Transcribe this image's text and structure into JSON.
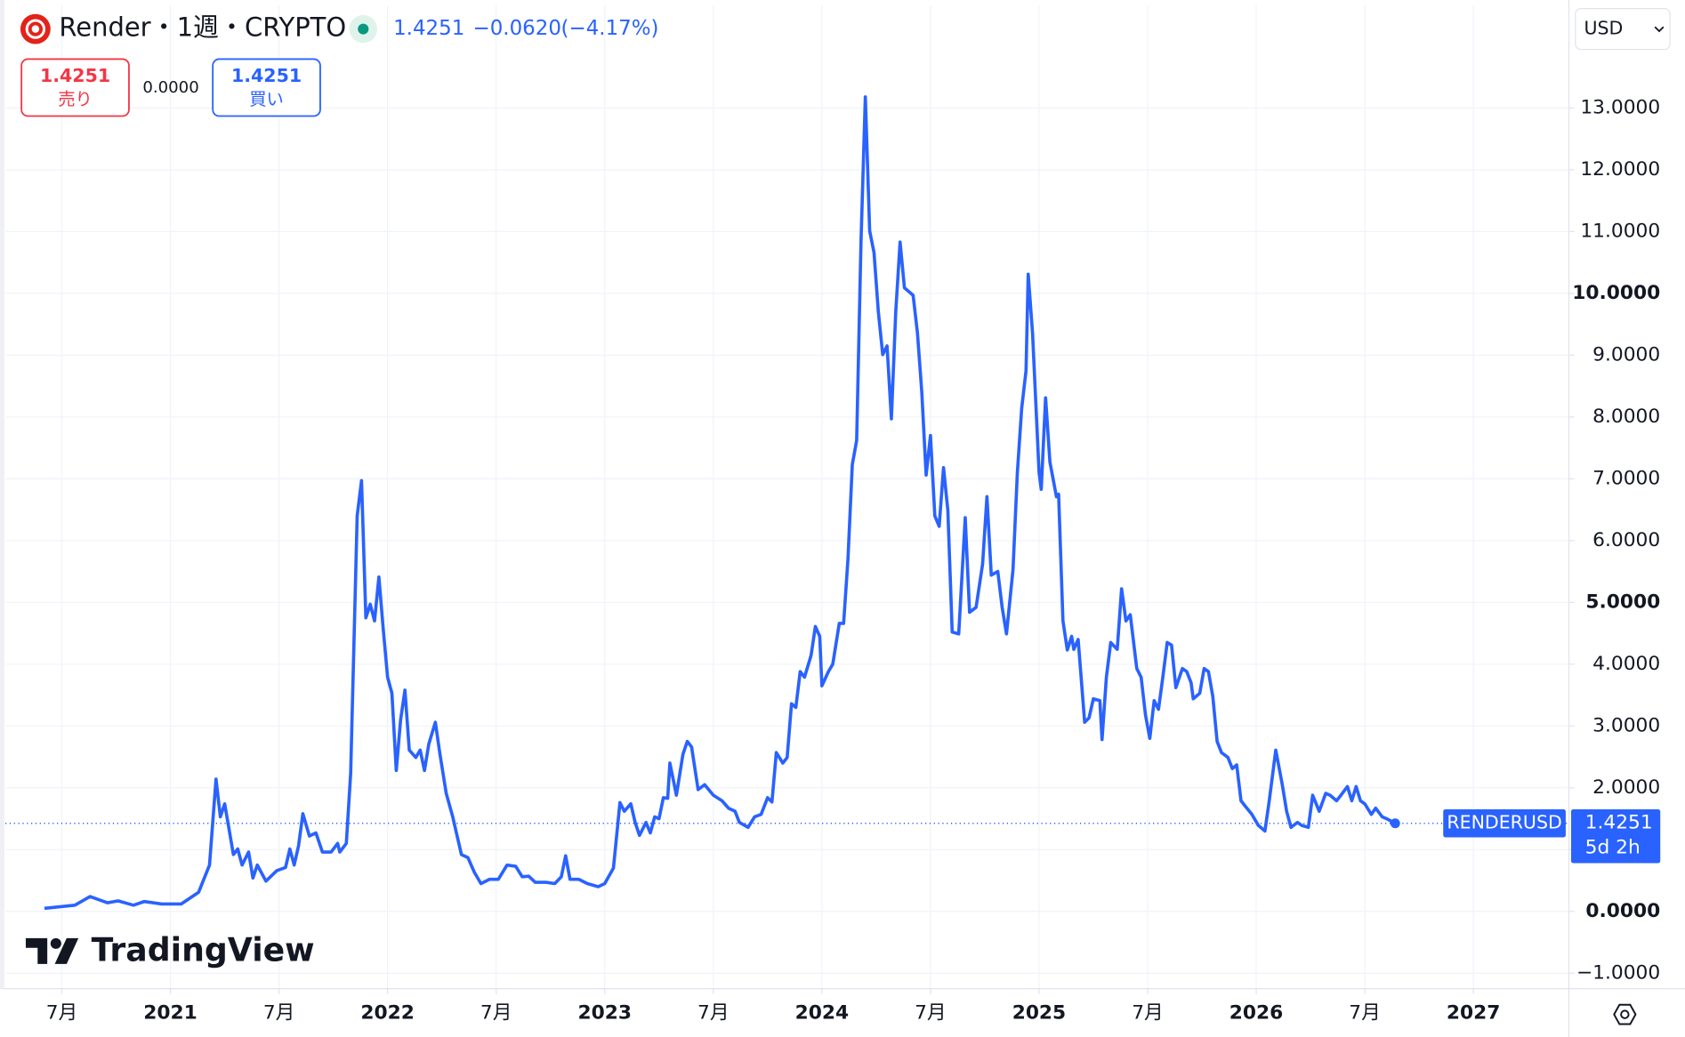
{
  "chart_data": {
    "type": "line",
    "title": "Render・1週・CRYPTO",
    "header": {
      "price": "1.4251",
      "change": "−0.0620",
      "change_pct": "(−4.17%)",
      "sell_price": "1.4251",
      "sell_label": "売り",
      "spread": "0.0000",
      "buy_price": "1.4251",
      "buy_label": "買い",
      "currency": "USD"
    },
    "logo": "TradingView",
    "countdown": "5d 2h",
    "last_price": {
      "value": 1.4251,
      "label": "1.4251"
    },
    "x": [
      2020.42,
      2020.56,
      2020.63,
      2020.71,
      2020.76,
      2020.83,
      2020.88,
      2020.96,
      2021.05,
      2021.13,
      2021.18,
      2021.21,
      2021.23,
      2021.25,
      2021.29,
      2021.31,
      2021.33,
      2021.36,
      2021.38,
      2021.4,
      2021.44,
      2021.49,
      2021.53,
      2021.55,
      2021.57,
      2021.59,
      2021.61,
      2021.64,
      2021.67,
      2021.7,
      2021.74,
      2021.77,
      2021.78,
      2021.81,
      2021.83,
      2021.86,
      2021.88,
      2021.9,
      2021.92,
      2021.94,
      2021.96,
      2021.98,
      2022.0,
      2022.02,
      2022.04,
      2022.06,
      2022.08,
      2022.1,
      2022.13,
      2022.15,
      2022.17,
      2022.19,
      2022.22,
      2022.24,
      2022.27,
      2022.3,
      2022.34,
      2022.37,
      2022.4,
      2022.43,
      2022.47,
      2022.51,
      2022.55,
      2022.59,
      2022.62,
      2022.65,
      2022.68,
      2022.73,
      2022.77,
      2022.8,
      2022.82,
      2022.84,
      2022.88,
      2022.92,
      2022.97,
      2023.0,
      2023.04,
      2023.07,
      2023.09,
      2023.12,
      2023.14,
      2023.16,
      2023.19,
      2023.21,
      2023.23,
      2023.25,
      2023.27,
      2023.29,
      2023.3,
      2023.33,
      2023.36,
      2023.38,
      2023.4,
      2023.43,
      2023.46,
      2023.5,
      2023.54,
      2023.57,
      2023.6,
      2023.62,
      2023.66,
      2023.69,
      2023.72,
      2023.75,
      2023.77,
      2023.79,
      2023.82,
      2023.84,
      2023.86,
      2023.88,
      2023.9,
      2023.92,
      2023.95,
      2023.97,
      2023.99,
      2024.0,
      2024.03,
      2024.05,
      2024.08,
      2024.1,
      2024.12,
      2024.14,
      2024.16,
      2024.18,
      2024.2,
      2024.22,
      2024.24,
      2024.26,
      2024.28,
      2024.3,
      2024.32,
      2024.34,
      2024.36,
      2024.38,
      2024.42,
      2024.44,
      2024.46,
      2024.48,
      2024.5,
      2024.52,
      2024.54,
      2024.56,
      2024.58,
      2024.6,
      2024.63,
      2024.66,
      2024.68,
      2024.71,
      2024.74,
      2024.76,
      2024.78,
      2024.81,
      2024.83,
      2024.85,
      2024.88,
      2024.9,
      2024.92,
      2024.94,
      2024.95,
      2024.97,
      2025.0,
      2025.01,
      2025.03,
      2025.05,
      2025.08,
      2025.09,
      2025.11,
      2025.13,
      2025.15,
      2025.16,
      2025.18,
      2025.21,
      2025.23,
      2025.25,
      2025.28,
      2025.29,
      2025.31,
      2025.33,
      2025.36,
      2025.38,
      2025.4,
      2025.42,
      2025.45,
      2025.47,
      2025.49,
      2025.51,
      2025.53,
      2025.55,
      2025.57,
      2025.59,
      2025.61,
      2025.63,
      2025.66,
      2025.68,
      2025.7,
      2025.71,
      2025.74,
      2025.76,
      2025.78,
      2025.8,
      2025.82,
      2025.84,
      2025.87,
      2025.89,
      2025.91,
      2025.93,
      2025.95,
      2025.98,
      2026.01,
      2026.04,
      2026.06,
      2026.09,
      2026.12,
      2026.14,
      2026.16,
      2026.19,
      2026.21,
      2026.24,
      2026.26,
      2026.29,
      2026.32,
      2026.34,
      2026.37,
      2026.39,
      2026.42,
      2026.44,
      2026.46,
      2026.48,
      2026.5,
      2026.53,
      2026.55,
      2026.58,
      2026.6,
      2026.64
    ],
    "series": [
      {
        "name": "RENDERUSD",
        "color": "#2962ff",
        "values": [
          0.05,
          0.1,
          0.24,
          0.14,
          0.17,
          0.1,
          0.16,
          0.12,
          0.12,
          0.31,
          0.75,
          2.14,
          1.53,
          1.74,
          0.92,
          1.01,
          0.75,
          0.96,
          0.54,
          0.75,
          0.49,
          0.66,
          0.71,
          1.01,
          0.75,
          1.06,
          1.58,
          1.22,
          1.27,
          0.96,
          0.96,
          1.1,
          0.96,
          1.1,
          2.23,
          6.4,
          6.97,
          4.75,
          4.97,
          4.7,
          5.41,
          4.57,
          3.79,
          3.53,
          2.28,
          3.1,
          3.58,
          2.61,
          2.49,
          2.61,
          2.28,
          2.71,
          3.06,
          2.57,
          1.91,
          1.53,
          0.92,
          0.87,
          0.63,
          0.45,
          0.52,
          0.52,
          0.75,
          0.73,
          0.56,
          0.57,
          0.47,
          0.47,
          0.45,
          0.56,
          0.9,
          0.52,
          0.52,
          0.45,
          0.4,
          0.45,
          0.7,
          1.76,
          1.62,
          1.74,
          1.44,
          1.23,
          1.44,
          1.27,
          1.53,
          1.5,
          1.84,
          1.83,
          2.4,
          1.88,
          2.54,
          2.75,
          2.66,
          1.97,
          2.05,
          1.88,
          1.79,
          1.67,
          1.62,
          1.44,
          1.36,
          1.53,
          1.57,
          1.84,
          1.77,
          2.57,
          2.4,
          2.49,
          3.36,
          3.3,
          3.88,
          3.79,
          4.14,
          4.61,
          4.45,
          3.65,
          3.88,
          4.0,
          4.66,
          4.66,
          5.7,
          7.23,
          7.62,
          10.83,
          13.18,
          11.01,
          10.66,
          9.7,
          9.01,
          9.15,
          7.97,
          9.7,
          10.83,
          10.09,
          9.97,
          9.36,
          8.4,
          7.06,
          7.7,
          6.4,
          6.23,
          7.18,
          6.49,
          4.52,
          4.49,
          6.37,
          4.84,
          4.92,
          5.62,
          6.71,
          5.44,
          5.5,
          4.92,
          4.49,
          5.53,
          7.1,
          8.14,
          8.75,
          10.31,
          9.36,
          7.1,
          6.83,
          8.31,
          7.27,
          6.71,
          6.75,
          4.7,
          4.23,
          4.45,
          4.24,
          4.4,
          3.06,
          3.13,
          3.44,
          3.41,
          2.78,
          3.79,
          4.35,
          4.24,
          5.22,
          4.7,
          4.8,
          3.93,
          3.79,
          3.18,
          2.8,
          3.41,
          3.27,
          3.79,
          4.35,
          4.31,
          3.62,
          3.93,
          3.88,
          3.7,
          3.44,
          3.53,
          3.93,
          3.88,
          3.48,
          2.75,
          2.57,
          2.49,
          2.31,
          2.37,
          1.79,
          1.7,
          1.57,
          1.39,
          1.3,
          1.79,
          2.61,
          2.05,
          1.62,
          1.36,
          1.44,
          1.39,
          1.36,
          1.88,
          1.62,
          1.91,
          1.88,
          1.79,
          1.88,
          2.02,
          1.79,
          2.02,
          1.79,
          1.74,
          1.57,
          1.67,
          1.53,
          1.5,
          1.4251
        ]
      }
    ],
    "xlim": [
      2020.24,
      2027.44
    ],
    "xticks": [
      {
        "value": 2020.5,
        "label": "7月"
      },
      2021,
      {
        "value": 2021.5,
        "label": "7月"
      },
      2022,
      {
        "value": 2022.5,
        "label": "7月"
      },
      2023,
      {
        "value": 2023.5,
        "label": "7月"
      },
      2024,
      {
        "value": 2024.5,
        "label": "7月"
      },
      2025,
      {
        "value": 2025.5,
        "label": "7月"
      },
      2026,
      {
        "value": 2026.5,
        "label": "7月"
      },
      2027
    ],
    "ylim": [
      -1.25,
      14.66
    ],
    "yticks": [
      {
        "value": -1,
        "label": "−1.0000"
      },
      {
        "value": 0,
        "label": "0.0000"
      },
      {
        "value": 1,
        "label": "1.0000"
      },
      {
        "value": 2,
        "label": "2.0000"
      },
      {
        "value": 3,
        "label": "3.0000"
      },
      {
        "value": 4,
        "label": "4.0000"
      },
      {
        "value": 5,
        "label": "5.0000"
      },
      {
        "value": 6,
        "label": "6.0000"
      },
      {
        "value": 7,
        "label": "7.0000"
      },
      {
        "value": 8,
        "label": "8.0000"
      },
      {
        "value": 9,
        "label": "9.0000"
      },
      {
        "value": 10,
        "label": "10.0000"
      },
      {
        "value": 11,
        "label": "11.0000"
      },
      {
        "value": 12,
        "label": "12.0000"
      },
      {
        "value": 13,
        "label": "13.0000"
      }
    ],
    "grid": true
  }
}
